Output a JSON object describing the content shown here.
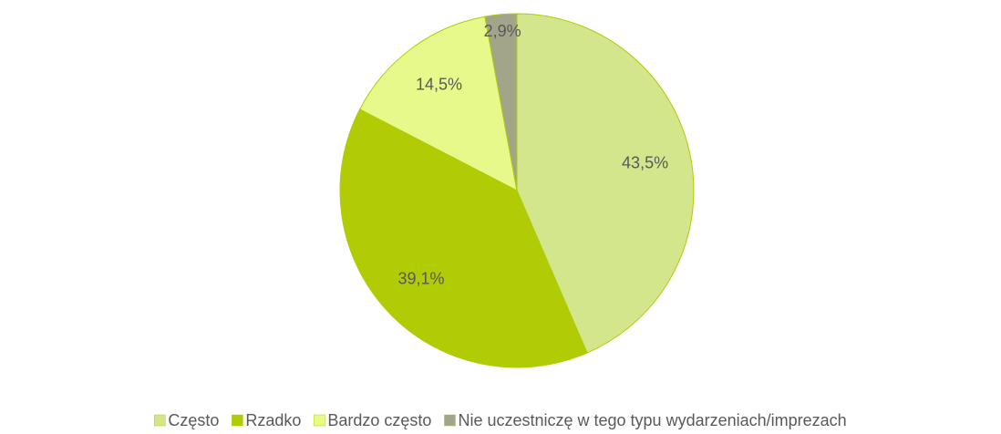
{
  "chart_data": {
    "type": "pie",
    "categories": [
      "Często",
      "Rzadko",
      "Bardzo często",
      "Nie uczestniczę w tego typu wydarzeniach/imprezach"
    ],
    "values": [
      43.5,
      39.1,
      14.5,
      2.9
    ],
    "value_labels": [
      "43,5%",
      "39,1%",
      "14,5%",
      "2,9%"
    ],
    "colors": [
      "#d3e68b",
      "#b1cb05",
      "#e8f98c",
      "#a3a58b"
    ],
    "legend": "bottom"
  }
}
